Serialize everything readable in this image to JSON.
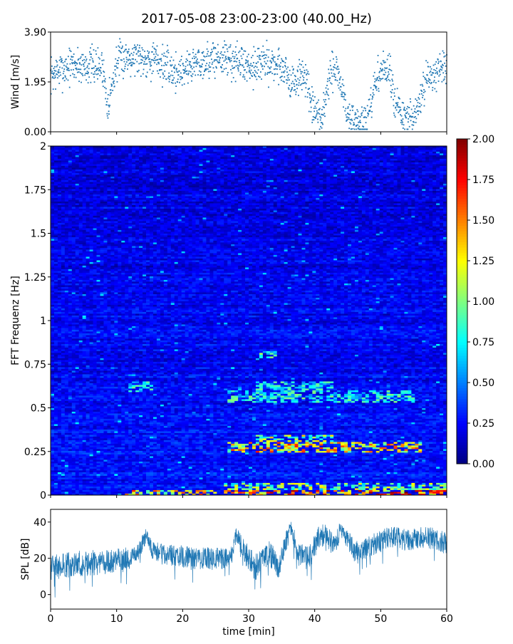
{
  "figure": {
    "title": "2017-05-08 23:00-23:00 (40.00_Hz)"
  },
  "chart_data": [
    {
      "type": "scatter",
      "ylabel": "Wind [m/s]",
      "xlim": [
        0,
        60
      ],
      "ylim": [
        0.0,
        3.9
      ],
      "yticks": [
        "0.00",
        "1.95",
        "3.90"
      ],
      "series_color": "#1f77b4",
      "trend": {
        "x": [
          0,
          3,
          6,
          8,
          8.5,
          9,
          10,
          12,
          16,
          19,
          22,
          26,
          30,
          33,
          35.5,
          36.5,
          38.5,
          39.5,
          41,
          42.5,
          43.5,
          45,
          47,
          48,
          49.5,
          51,
          53,
          55,
          57,
          59,
          60
        ],
        "y": [
          2.2,
          2.6,
          2.6,
          2.5,
          1.2,
          1.4,
          2.7,
          3.0,
          2.8,
          2.3,
          2.7,
          2.9,
          2.6,
          2.7,
          2.5,
          1.8,
          2.3,
          0.9,
          0.5,
          2.3,
          2.4,
          0.6,
          0.35,
          0.4,
          2.2,
          2.5,
          0.6,
          0.45,
          2.0,
          2.6,
          2.3
        ]
      },
      "scatter_half_width": 0.55
    },
    {
      "type": "heatmap",
      "ylabel": "FFT Frequenz [Hz]",
      "xlim": [
        0,
        60
      ],
      "ylim": [
        0,
        2
      ],
      "yticks": [
        "0",
        "0.25",
        "0.5",
        "0.75",
        "1",
        "1.25",
        "1.5",
        "1.75",
        "2"
      ],
      "colorbar": {
        "range": [
          0.0,
          2.0
        ],
        "ticks": [
          "0.00",
          "0.25",
          "0.50",
          "0.75",
          "1.00",
          "1.25",
          "1.50",
          "1.75",
          "2.00"
        ],
        "colormap": "jet"
      },
      "hotspots": [
        {
          "t0": 11.5,
          "t1": 25,
          "f0": 0.0,
          "f1": 0.03,
          "v": 1.5
        },
        {
          "t0": 26,
          "t1": 60,
          "f0": 0.0,
          "f1": 0.03,
          "v": 1.75
        },
        {
          "t0": 26,
          "t1": 60,
          "f0": 0.03,
          "f1": 0.07,
          "v": 1.15
        },
        {
          "t0": 27,
          "t1": 56,
          "f0": 0.24,
          "f1": 0.31,
          "v": 1.5
        },
        {
          "t0": 31,
          "t1": 43,
          "f0": 0.31,
          "f1": 0.35,
          "v": 1.2
        },
        {
          "t0": 27,
          "t1": 55,
          "f0": 0.53,
          "f1": 0.6,
          "v": 0.9
        },
        {
          "t0": 31,
          "t1": 43,
          "f0": 0.6,
          "f1": 0.65,
          "v": 0.85
        },
        {
          "t0": 12,
          "t1": 15.5,
          "f0": 0.59,
          "f1": 0.65,
          "v": 0.85
        },
        {
          "t0": 31.5,
          "t1": 34.5,
          "f0": 0.79,
          "f1": 0.83,
          "v": 1.0
        }
      ]
    },
    {
      "type": "line",
      "ylabel": "SPL [dB]",
      "xlabel": "time [min]",
      "xlim": [
        0,
        60
      ],
      "ylim": [
        -8,
        47
      ],
      "yticks": [
        "0",
        "20",
        "40"
      ],
      "xticks": [
        "0",
        "10",
        "20",
        "30",
        "40",
        "50",
        "60"
      ],
      "series_color": "#1f77b4",
      "envelope": {
        "x": [
          0,
          4,
          8,
          12,
          13.5,
          14.5,
          15.5,
          18,
          22,
          26,
          27.5,
          28,
          29,
          31,
          33,
          34.5,
          35.5,
          36.5,
          37.5,
          39,
          40.5,
          41.5,
          43,
          44,
          46,
          48,
          50,
          52,
          54,
          57,
          60
        ],
        "mid": [
          15,
          17,
          18,
          20,
          25,
          33,
          24,
          22,
          20,
          20,
          22,
          34,
          26,
          14,
          24,
          15,
          28,
          38,
          22,
          20,
          30,
          34,
          26,
          37,
          24,
          26,
          30,
          32,
          30,
          32,
          28
        ],
        "spread": [
          7,
          7,
          7,
          6,
          5,
          4,
          5,
          6,
          6,
          6,
          5,
          4,
          6,
          8,
          7,
          7,
          6,
          5,
          6,
          7,
          7,
          6,
          6,
          5,
          6,
          6,
          6,
          6,
          6,
          6,
          6
        ]
      }
    }
  ]
}
